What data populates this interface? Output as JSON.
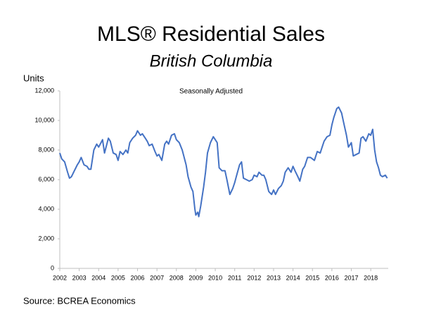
{
  "chart_data": {
    "type": "line",
    "title": "MLS® Residential Sales",
    "subtitle": "British Columbia",
    "y_label": "Units",
    "annotation": "Seasonally Adjusted",
    "source": "Source: BCREA Economics",
    "x": [
      2002.0,
      2002.1,
      2002.25,
      2002.4,
      2002.5,
      2002.6,
      2002.75,
      2002.9,
      2003.0,
      2003.1,
      2003.25,
      2003.4,
      2003.5,
      2003.6,
      2003.75,
      2003.9,
      2004.0,
      2004.2,
      2004.3,
      2004.5,
      2004.6,
      2004.75,
      2004.9,
      2005.0,
      2005.1,
      2005.25,
      2005.4,
      2005.5,
      2005.6,
      2005.75,
      2005.9,
      2006.0,
      2006.15,
      2006.25,
      2006.4,
      2006.5,
      2006.6,
      2006.75,
      2006.9,
      2007.0,
      2007.1,
      2007.25,
      2007.4,
      2007.5,
      2007.6,
      2007.75,
      2007.9,
      2008.0,
      2008.15,
      2008.3,
      2008.5,
      2008.6,
      2008.75,
      2008.85,
      2008.95,
      2009.0,
      2009.1,
      2009.15,
      2009.25,
      2009.4,
      2009.5,
      2009.6,
      2009.75,
      2009.9,
      2010.0,
      2010.1,
      2010.2,
      2010.35,
      2010.5,
      2010.6,
      2010.75,
      2010.9,
      2011.0,
      2011.1,
      2011.25,
      2011.35,
      2011.45,
      2011.6,
      2011.75,
      2011.9,
      2012.0,
      2012.15,
      2012.25,
      2012.4,
      2012.5,
      2012.6,
      2012.75,
      2012.9,
      2013.0,
      2013.1,
      2013.25,
      2013.4,
      2013.5,
      2013.6,
      2013.75,
      2013.9,
      2014.0,
      2014.1,
      2014.25,
      2014.35,
      2014.5,
      2014.6,
      2014.75,
      2014.9,
      2015.0,
      2015.1,
      2015.25,
      2015.4,
      2015.5,
      2015.6,
      2015.75,
      2015.9,
      2016.0,
      2016.1,
      2016.25,
      2016.35,
      2016.5,
      2016.6,
      2016.75,
      2016.85,
      2017.0,
      2017.1,
      2017.25,
      2017.4,
      2017.5,
      2017.6,
      2017.75,
      2017.9,
      2018.0,
      2018.1,
      2018.2,
      2018.3,
      2018.4,
      2018.5,
      2018.6,
      2018.75,
      2018.85
    ],
    "series": [
      {
        "color": "#4472c4",
        "values": [
          7800,
          7400,
          7200,
          6500,
          6100,
          6200,
          6600,
          7000,
          7200,
          7500,
          7000,
          6900,
          6700,
          6700,
          8000,
          8400,
          8200,
          8700,
          7800,
          8800,
          8600,
          7800,
          7700,
          7300,
          7900,
          7700,
          8000,
          7800,
          8500,
          8800,
          9000,
          9300,
          9000,
          9100,
          8800,
          8600,
          8300,
          8400,
          7900,
          7600,
          7700,
          7300,
          8400,
          8600,
          8400,
          9000,
          9100,
          8700,
          8500,
          8000,
          7000,
          6200,
          5500,
          5200,
          4000,
          3600,
          3800,
          3500,
          4200,
          5500,
          6500,
          7800,
          8500,
          8900,
          8700,
          8500,
          6800,
          6600,
          6600,
          6000,
          5000,
          5400,
          5800,
          6300,
          7000,
          7200,
          6100,
          6000,
          5900,
          6000,
          6300,
          6200,
          6500,
          6300,
          6300,
          6000,
          5200,
          5000,
          5300,
          5000,
          5400,
          5600,
          5900,
          6500,
          6800,
          6500,
          6900,
          6600,
          6200,
          5900,
          6700,
          6900,
          7500,
          7500,
          7400,
          7300,
          7900,
          7800,
          8200,
          8600,
          8900,
          9000,
          9700,
          10200,
          10800,
          10900,
          10500,
          9900,
          9000,
          8200,
          8500,
          7600,
          7700,
          7800,
          8800,
          8900,
          8600,
          9100,
          9000,
          9400,
          8000,
          7200,
          6800,
          6300,
          6200,
          6300,
          6100
        ]
      }
    ],
    "xlim": [
      2002,
      2018.9
    ],
    "xticks": [
      2002,
      2003,
      2004,
      2005,
      2006,
      2007,
      2008,
      2009,
      2010,
      2011,
      2012,
      2013,
      2014,
      2015,
      2016,
      2017,
      2018
    ],
    "ylim": [
      0,
      12000
    ],
    "yticks": [
      0,
      {
        "value": 2000,
        "label": "2,000"
      },
      {
        "value": 4000,
        "label": "4,000"
      },
      {
        "value": 6000,
        "label": "6,000"
      },
      {
        "value": 8000,
        "label": "8,000"
      },
      {
        "value": 10000,
        "label": "10,000"
      },
      {
        "value": 12000,
        "label": "12,000"
      }
    ],
    "grid": false
  }
}
